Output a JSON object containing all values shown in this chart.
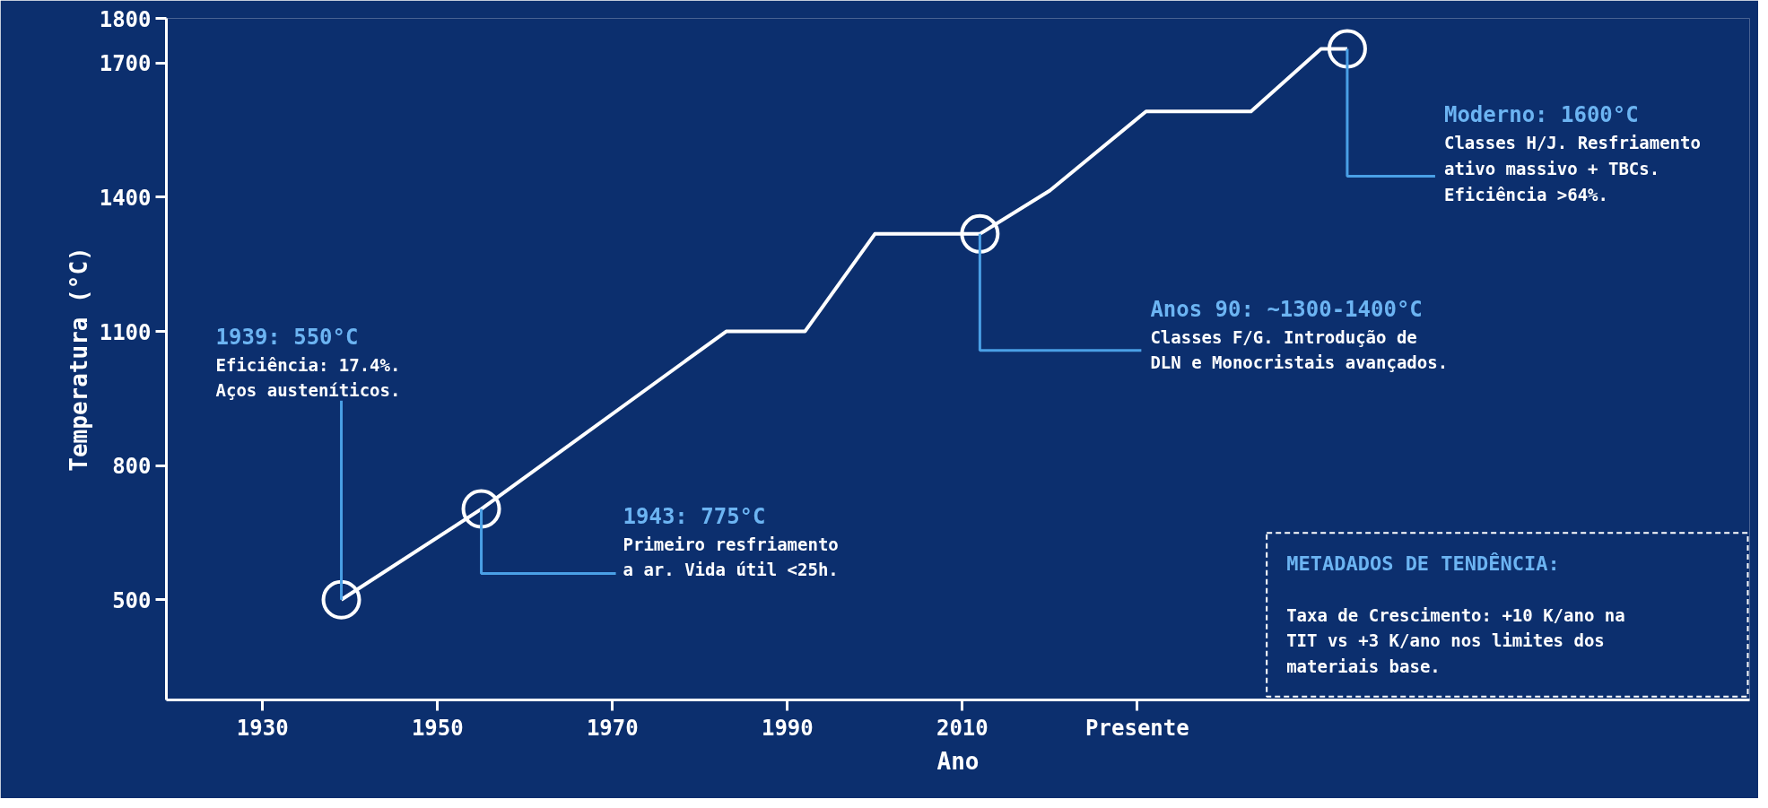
{
  "chart_data": {
    "type": "line",
    "xlabel": "Ano",
    "ylabel": "Temperatura (°C)",
    "xlim": [
      1919,
      2100
    ],
    "ylim": [
      276,
      1800
    ],
    "xticks": [
      1930,
      1950,
      1970,
      1990,
      2010,
      {
        "value": 2030,
        "label": "Presente"
      }
    ],
    "yticks": [
      500,
      800,
      1100,
      1400,
      1700,
      1800
    ],
    "grid": false,
    "series": [
      {
        "color": "#ffffff",
        "marker": "none",
        "line_style": "solid",
        "x": [
          1939,
          1955,
          1983,
          1992,
          2000,
          2012,
          2020,
          2031,
          2043,
          2051,
          2054
        ],
        "values": [
          500,
          703,
          1100,
          1100,
          1318,
          1318,
          1415,
          1592,
          1592,
          1732,
          1732
        ]
      },
      {
        "type": "scatter",
        "color": "#ffffff",
        "marker": "circle",
        "x": [
          1939,
          1955,
          2012,
          2054
        ],
        "values": [
          500,
          703,
          1318,
          1732
        ]
      }
    ],
    "annotations": [
      {
        "text": "1939: 550°C\nEficiência: 17.4%.\nAços austeníticos.",
        "x": 1939,
        "y": 500
      },
      {
        "text": "1943: 775°C\nPrimeiro resfriamento\na ar. Vida útil <25h.",
        "x": 1955,
        "y": 703
      },
      {
        "text": "Anos 90: ~1300-1400°C\nClasses F/G. Introdução de\nDLN e Monocristais avançados.",
        "x": 2012,
        "y": 1318
      },
      {
        "text": "Moderno: 1600°C\nClasses H/J. Resfriamento\nativo massivo + TBCs.\nEficiência >64%.",
        "x": 2054,
        "y": 1732
      },
      "METADADOS DE TENDÊNCIA:\n\nTaxa de Crescimento: +10 K/ano na\nTIT vs +3 K/ano nos limites dos\nmateriais base."
    ]
  }
}
